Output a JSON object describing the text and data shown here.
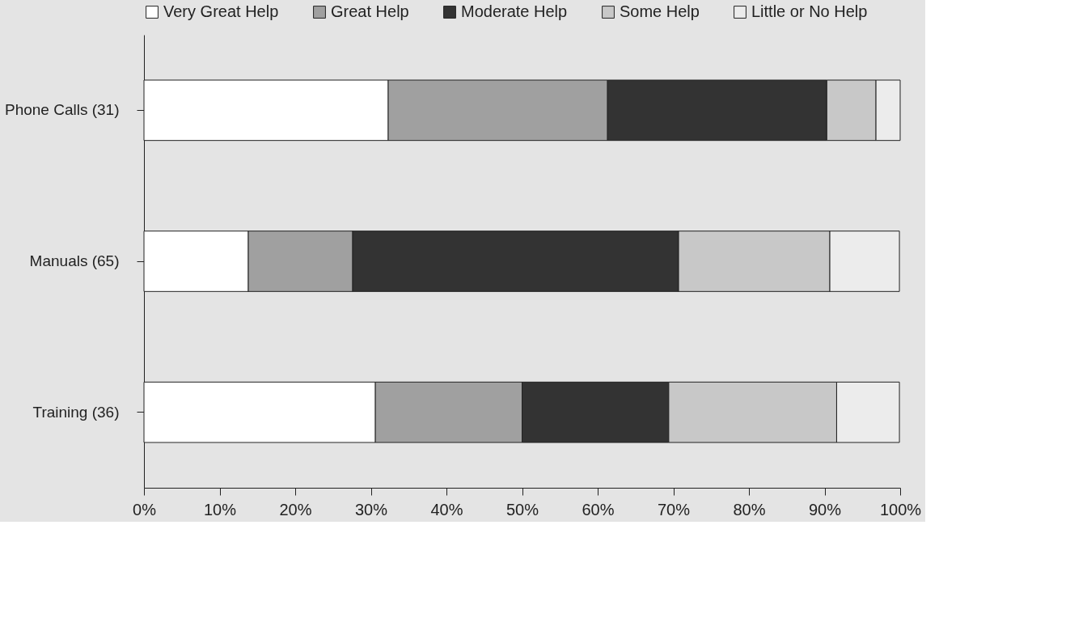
{
  "chart_data": {
    "type": "bar",
    "orientation": "horizontal",
    "stacked": true,
    "categories": [
      "Phone Calls (31)",
      "Manuals (65)",
      "Training (36)"
    ],
    "series": [
      {
        "name": "Very Great Help",
        "color": "#ffffff",
        "values": [
          32.3,
          13.8,
          30.6
        ]
      },
      {
        "name": "Great Help",
        "color": "#a0a0a0",
        "values": [
          29.0,
          13.8,
          19.4
        ]
      },
      {
        "name": "Moderate Help",
        "color": "#333333",
        "values": [
          29.0,
          43.1,
          19.4
        ]
      },
      {
        "name": "Some Help",
        "color": "#c8c8c8",
        "values": [
          6.5,
          20.0,
          22.2
        ]
      },
      {
        "name": "Little or No Help",
        "color": "#ececec",
        "values": [
          3.2,
          9.2,
          8.3
        ]
      }
    ],
    "xlim": [
      0,
      100
    ],
    "xticks": [
      {
        "value": 0,
        "label": "0%"
      },
      {
        "value": 10,
        "label": "10%"
      },
      {
        "value": 20,
        "label": "20%"
      },
      {
        "value": 30,
        "label": "30%"
      },
      {
        "value": 40,
        "label": "40%"
      },
      {
        "value": 50,
        "label": "50%"
      },
      {
        "value": 60,
        "label": "60%"
      },
      {
        "value": 70,
        "label": "70%"
      },
      {
        "value": 80,
        "label": "80%"
      },
      {
        "value": 90,
        "label": "90%"
      },
      {
        "value": 100,
        "label": "100%"
      }
    ],
    "grid": false,
    "legend": "top"
  }
}
